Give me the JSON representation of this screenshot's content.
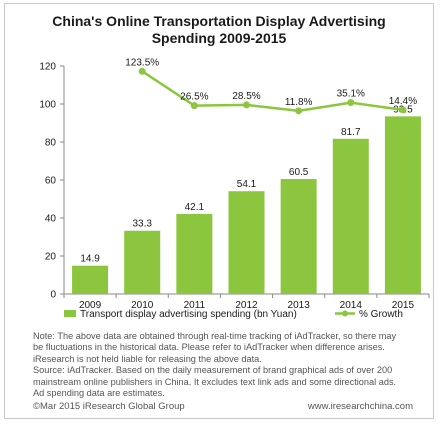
{
  "chart_data": {
    "type": "bar",
    "title_lines": [
      "China's Online Transportation Display Advertising",
      "Spending 2009-2015"
    ],
    "categories": [
      "2009",
      "2010",
      "2011",
      "2012",
      "2013",
      "2014",
      "2015"
    ],
    "series": [
      {
        "name": "Transport display advertising spending (bn Yuan)",
        "type": "bar",
        "color": "#8cc63f",
        "values": [
          14.9,
          33.3,
          42.1,
          54.1,
          60.5,
          81.7,
          93.5
        ],
        "labels": [
          "14.9",
          "33.3",
          "42.1",
          "54.1",
          "60.5",
          "81.7",
          "93.5"
        ]
      },
      {
        "name": "% Growth",
        "type": "line",
        "color": "#8cc63f",
        "x": [
          "2010",
          "2011",
          "2012",
          "2013",
          "2014",
          "2015"
        ],
        "values": [
          123.5,
          26.5,
          28.5,
          11.8,
          35.1,
          14.4
        ],
        "labels": [
          "123.5%",
          "26.5%",
          "28.5%",
          "11.8%",
          "35.1%",
          "14.4%"
        ]
      }
    ],
    "y_ticks": [
      "0",
      "20",
      "40",
      "60",
      "80",
      "100",
      "120"
    ],
    "ylim": [
      0,
      120
    ],
    "grid": false,
    "legend_position": "bottom"
  },
  "notes": [
    "Note: The above data are obtained through real-time tracking of iAdTracker, so there may",
    "be fluctuations in the historical data. Please refer to iAdTracker when difference arises.",
    "iResearch is not held liable for releasing the above data.",
    "Source: iAdTracker.  Based on the daily measurement of brand graphical ads of over 200",
    "mainstream online publishers in China. It excludes text link ads and some directional  ads.",
    "Ad spending data are estimates."
  ],
  "footer": {
    "copyright": "©Mar 2015 iResearch Global Group",
    "website": "www.iresearchchina.com"
  }
}
